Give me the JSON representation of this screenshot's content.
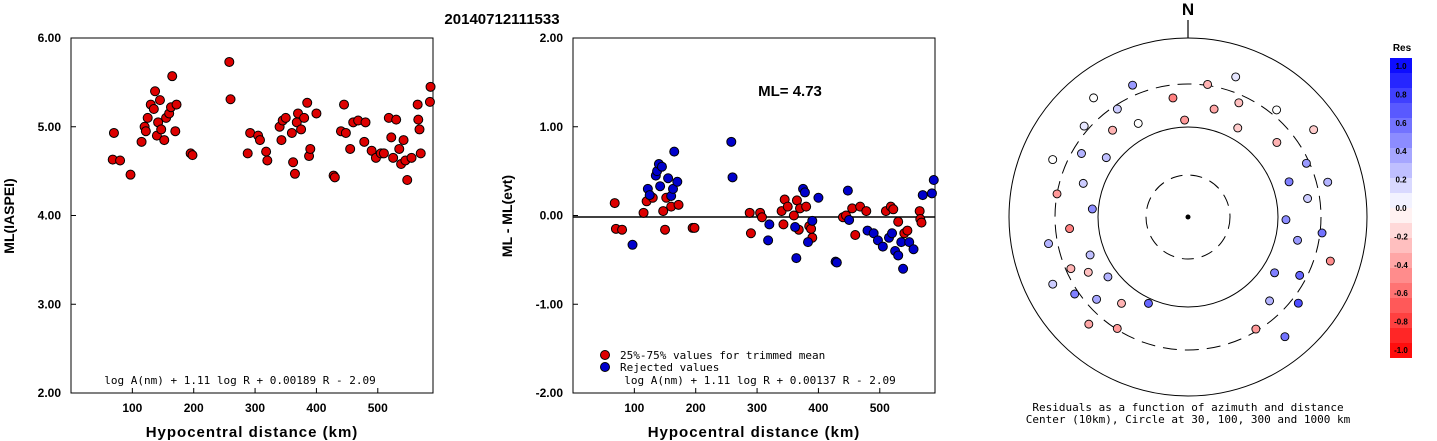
{
  "title": "20140712111533",
  "north_label": "N",
  "colors": {
    "point_red": "#dd0000",
    "point_blue": "#0000cc",
    "axis": "#000000"
  },
  "chart_data": [
    {
      "type": "scatter",
      "ylabel": "ML(IASPEI)",
      "xlabel": "Hypocentral distance (km)",
      "xlim": [
        0,
        590
      ],
      "ylim": [
        2.0,
        6.0
      ],
      "xticks": [
        "100",
        "200",
        "300",
        "400",
        "500"
      ],
      "yticks": [
        "2.00",
        "3.00",
        "4.00",
        "5.00",
        "6.00"
      ],
      "formula": "log A(nm) + 1.11 log R + 0.00189 R - 2.09",
      "points": [
        [
          68,
          4.63
        ],
        [
          70,
          4.93
        ],
        [
          80,
          4.62
        ],
        [
          97,
          4.46
        ],
        [
          115,
          4.83
        ],
        [
          120,
          5.0
        ],
        [
          122,
          4.95
        ],
        [
          125,
          5.1
        ],
        [
          130,
          5.25
        ],
        [
          135,
          5.2
        ],
        [
          137,
          5.4
        ],
        [
          140,
          4.9
        ],
        [
          142,
          5.05
        ],
        [
          145,
          5.3
        ],
        [
          147,
          4.97
        ],
        [
          152,
          4.85
        ],
        [
          155,
          5.1
        ],
        [
          160,
          5.15
        ],
        [
          163,
          5.22
        ],
        [
          165,
          5.57
        ],
        [
          170,
          4.95
        ],
        [
          172,
          5.25
        ],
        [
          195,
          4.7
        ],
        [
          198,
          4.68
        ],
        [
          258,
          5.73
        ],
        [
          260,
          5.31
        ],
        [
          288,
          4.7
        ],
        [
          292,
          4.93
        ],
        [
          305,
          4.9
        ],
        [
          308,
          4.85
        ],
        [
          318,
          4.72
        ],
        [
          320,
          4.62
        ],
        [
          340,
          5.0
        ],
        [
          343,
          4.85
        ],
        [
          345,
          5.07
        ],
        [
          350,
          5.1
        ],
        [
          360,
          4.93
        ],
        [
          362,
          4.6
        ],
        [
          365,
          4.47
        ],
        [
          368,
          5.05
        ],
        [
          370,
          5.15
        ],
        [
          375,
          4.97
        ],
        [
          380,
          5.1
        ],
        [
          385,
          5.27
        ],
        [
          388,
          4.67
        ],
        [
          390,
          4.75
        ],
        [
          400,
          5.15
        ],
        [
          428,
          4.45
        ],
        [
          430,
          4.43
        ],
        [
          440,
          4.95
        ],
        [
          445,
          5.25
        ],
        [
          448,
          4.93
        ],
        [
          455,
          4.75
        ],
        [
          460,
          5.05
        ],
        [
          468,
          5.07
        ],
        [
          478,
          4.83
        ],
        [
          480,
          5.05
        ],
        [
          490,
          4.73
        ],
        [
          497,
          4.65
        ],
        [
          505,
          4.7
        ],
        [
          510,
          4.7
        ],
        [
          518,
          5.1
        ],
        [
          522,
          4.88
        ],
        [
          525,
          4.65
        ],
        [
          530,
          5.08
        ],
        [
          535,
          4.75
        ],
        [
          538,
          4.58
        ],
        [
          542,
          4.85
        ],
        [
          545,
          4.62
        ],
        [
          548,
          4.4
        ],
        [
          555,
          4.65
        ],
        [
          565,
          5.25
        ],
        [
          566,
          5.08
        ],
        [
          568,
          4.97
        ],
        [
          570,
          4.7
        ],
        [
          585,
          5.28
        ],
        [
          586,
          5.45
        ],
        [
          595,
          5.4
        ]
      ]
    },
    {
      "type": "scatter",
      "ylabel": "ML - ML(evt)",
      "xlabel": "Hypocentral distance (km)",
      "xlim": [
        0,
        590
      ],
      "ylim": [
        -2.0,
        2.0
      ],
      "xticks": [
        "100",
        "200",
        "300",
        "400",
        "500"
      ],
      "yticks": [
        "-2.00",
        "-1.00",
        "0.00",
        "1.00",
        "2.00"
      ],
      "annotation": "ML= 4.73",
      "formula": "log A(nm) + 1.11 log R + 0.00137 R - 2.09",
      "legend": [
        {
          "label": "25%-75% values for trimmed mean",
          "color": "#dd0000"
        },
        {
          "label": "Rejected values",
          "color": "#0000cc"
        }
      ],
      "series": [
        {
          "name": "25%-75% values for trimmed mean",
          "points": [
            [
              68,
              0.14
            ],
            [
              70,
              -0.15
            ],
            [
              80,
              -0.16
            ],
            [
              115,
              0.03
            ],
            [
              120,
              0.16
            ],
            [
              130,
              0.2
            ],
            [
              147,
              0.05
            ],
            [
              150,
              -0.16
            ],
            [
              152,
              0.2
            ],
            [
              160,
              0.1
            ],
            [
              172,
              0.12
            ],
            [
              195,
              -0.14
            ],
            [
              198,
              -0.14
            ],
            [
              288,
              0.03
            ],
            [
              290,
              -0.2
            ],
            [
              305,
              0.03
            ],
            [
              308,
              -0.02
            ],
            [
              340,
              0.05
            ],
            [
              343,
              -0.1
            ],
            [
              345,
              0.18
            ],
            [
              350,
              0.1
            ],
            [
              360,
              0.0
            ],
            [
              365,
              0.17
            ],
            [
              368,
              -0.16
            ],
            [
              370,
              0.08
            ],
            [
              380,
              0.1
            ],
            [
              385,
              -0.12
            ],
            [
              388,
              -0.15
            ],
            [
              390,
              -0.25
            ],
            [
              440,
              -0.02
            ],
            [
              445,
              0.0
            ],
            [
              455,
              0.08
            ],
            [
              460,
              -0.22
            ],
            [
              468,
              0.1
            ],
            [
              478,
              0.05
            ],
            [
              510,
              0.05
            ],
            [
              518,
              0.1
            ],
            [
              522,
              0.07
            ],
            [
              530,
              -0.07
            ],
            [
              540,
              -0.2
            ],
            [
              545,
              -0.17
            ],
            [
              565,
              0.05
            ],
            [
              566,
              -0.04
            ],
            [
              568,
              -0.08
            ]
          ]
        },
        {
          "name": "Rejected values",
          "points": [
            [
              97,
              -0.33
            ],
            [
              122,
              0.3
            ],
            [
              125,
              0.23
            ],
            [
              135,
              0.45
            ],
            [
              137,
              0.5
            ],
            [
              140,
              0.58
            ],
            [
              142,
              0.33
            ],
            [
              145,
              0.55
            ],
            [
              155,
              0.42
            ],
            [
              160,
              0.22
            ],
            [
              163,
              0.3
            ],
            [
              165,
              0.72
            ],
            [
              170,
              0.38
            ],
            [
              258,
              0.83
            ],
            [
              260,
              0.43
            ],
            [
              318,
              -0.28
            ],
            [
              320,
              -0.1
            ],
            [
              362,
              -0.13
            ],
            [
              364,
              -0.48
            ],
            [
              375,
              0.3
            ],
            [
              378,
              0.26
            ],
            [
              383,
              -0.3
            ],
            [
              390,
              -0.06
            ],
            [
              400,
              0.2
            ],
            [
              428,
              -0.52
            ],
            [
              430,
              -0.53
            ],
            [
              448,
              0.28
            ],
            [
              450,
              -0.05
            ],
            [
              480,
              -0.17
            ],
            [
              490,
              -0.2
            ],
            [
              497,
              -0.28
            ],
            [
              505,
              -0.35
            ],
            [
              515,
              -0.25
            ],
            [
              520,
              -0.2
            ],
            [
              525,
              -0.4
            ],
            [
              530,
              -0.45
            ],
            [
              535,
              -0.3
            ],
            [
              538,
              -0.6
            ],
            [
              548,
              -0.3
            ],
            [
              555,
              -0.38
            ],
            [
              570,
              0.23
            ],
            [
              585,
              0.25
            ],
            [
              588,
              0.4
            ]
          ]
        }
      ]
    },
    {
      "type": "scatter",
      "subtype": "polar",
      "caption_line1": "Residuals as a function of azimuth and distance",
      "caption_line2": "Center (10km), Circle at 30, 100, 300 and 1000 km",
      "colorbar": {
        "title": "Res",
        "range": [
          -1.0,
          1.0
        ],
        "labels": [
          "1.0",
          "0.8",
          "0.6",
          "0.4",
          "0.2",
          "0.0",
          "-0.2",
          "-0.4",
          "-0.6",
          "-0.8",
          "-1.0"
        ]
      },
      "stations": [
        {
          "az": 21,
          "res": 0.6
        },
        {
          "az": 24,
          "res": -0.4
        },
        {
          "az": 26,
          "res": -0.3
        },
        {
          "az": 28,
          "res": -0.35
        },
        {
          "az": 30,
          "res": 0.35
        },
        {
          "az": 32,
          "res": 0.3
        },
        {
          "az": 33,
          "res": 0.5
        },
        {
          "az": 35,
          "res": -0.25
        },
        {
          "az": 36,
          "res": 0.2
        },
        {
          "az": 37,
          "res": -0.3
        },
        {
          "az": 38,
          "res": 0.25
        },
        {
          "az": 42,
          "res": 0.3
        },
        {
          "az": 44,
          "res": -0.5
        },
        {
          "az": 48,
          "res": 0.45
        },
        {
          "az": 50,
          "res": -0.4
        },
        {
          "az": 53,
          "res": 0.2
        },
        {
          "az": 55,
          "res": 0.0
        },
        {
          "az": 58,
          "res": 0.3
        },
        {
          "az": 60,
          "res": 0.25
        },
        {
          "az": 62,
          "res": 0.1
        },
        {
          "az": 65,
          "res": -0.3
        },
        {
          "az": 66,
          "res": 0.0
        },
        {
          "az": 68,
          "res": 0.2
        },
        {
          "az": 70,
          "res": 0.0
        },
        {
          "az": 72,
          "res": 0.4
        },
        {
          "az": 78,
          "res": -0.5
        },
        {
          "az": 80,
          "res": -0.4
        },
        {
          "az": 84,
          "res": -0.3
        },
        {
          "az": 86,
          "res": -0.35
        },
        {
          "az": 88,
          "res": 0.1
        },
        {
          "az": 90,
          "res": -0.25
        },
        {
          "az": 92,
          "res": -0.2
        },
        {
          "az": 96,
          "res": 0.0
        },
        {
          "az": 100,
          "res": -0.3
        },
        {
          "az": 102,
          "res": -0.2
        },
        {
          "az": 106,
          "res": 0.4
        },
        {
          "az": 108,
          "res": 0.5
        },
        {
          "az": 110,
          "res": 0.3
        },
        {
          "az": 112,
          "res": 0.2
        },
        {
          "az": 116,
          "res": 0.45
        },
        {
          "az": 118,
          "res": 0.55
        },
        {
          "az": 120,
          "res": 0.4
        },
        {
          "az": 122,
          "res": -0.45
        },
        {
          "az": 126,
          "res": 0.6
        },
        {
          "az": 128,
          "res": 0.5
        },
        {
          "az": 130,
          "res": 0.7
        },
        {
          "az": 133,
          "res": 0.3
        },
        {
          "az": 135,
          "res": 0.55
        },
        {
          "az": 138,
          "res": -0.4
        }
      ]
    }
  ]
}
